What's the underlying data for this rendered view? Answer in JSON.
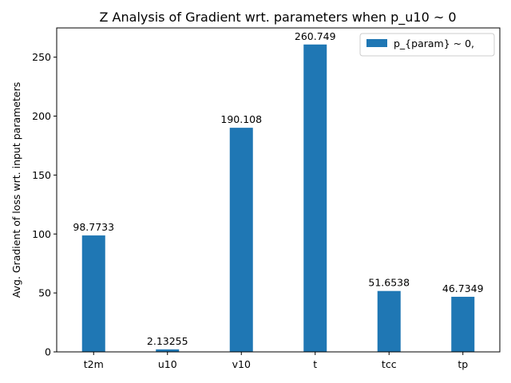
{
  "chart_data": {
    "type": "bar",
    "title": "Z Analysis of Gradient wrt. parameters when p_u10 ~ 0",
    "xlabel": "",
    "ylabel": "Avg. Gradient of loss wrt. input parameters",
    "categories": [
      "t2m",
      "u10",
      "v10",
      "t",
      "tcc",
      "tp"
    ],
    "series": [
      {
        "name": "p_{param} ~ 0,",
        "values": [
          98.7733,
          2.13255,
          190.108,
          260.749,
          51.6538,
          46.7349
        ],
        "labels": [
          "98.7733",
          "2.13255",
          "190.108",
          "260.749",
          "51.6538",
          "46.7349"
        ],
        "color": "#1f77b4"
      }
    ],
    "ylim": [
      0,
      274.8
    ],
    "yticks": [
      0,
      50,
      100,
      150,
      200,
      250
    ],
    "grid": false,
    "legend_position": "top-right"
  }
}
